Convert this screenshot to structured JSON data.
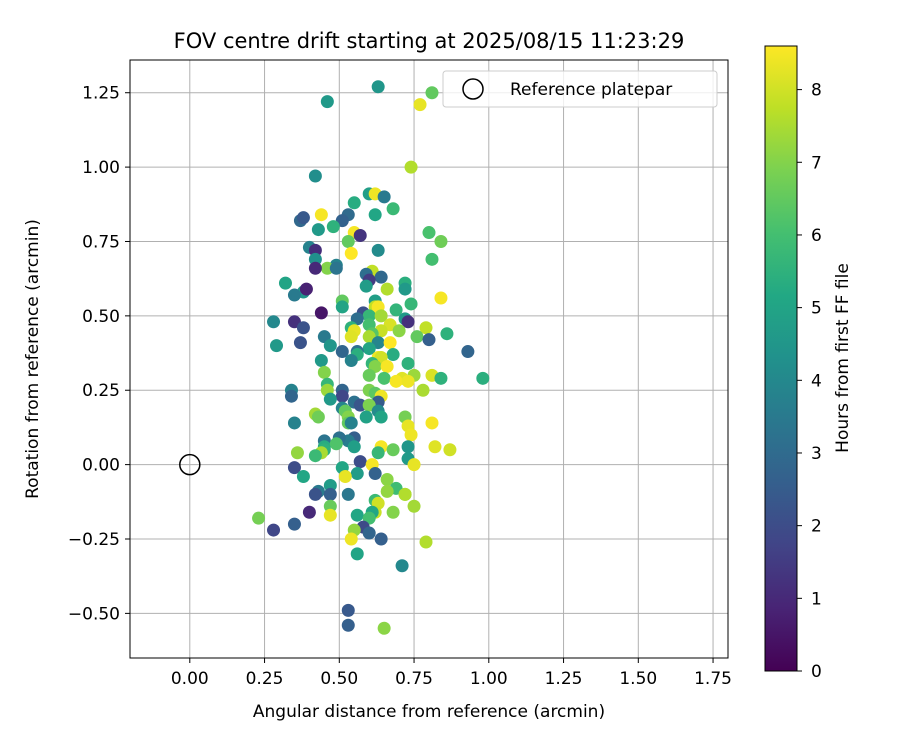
{
  "chart_data": {
    "type": "scatter",
    "title": "FOV centre drift starting at 2025/08/15 11:23:29",
    "xlabel": "Angular distance from reference (arcmin)",
    "ylabel": "Rotation from reference (arcmin)",
    "xlim": [
      -0.2,
      1.8
    ],
    "ylim": [
      -0.65,
      1.36
    ],
    "xticks": [
      "0.00",
      "0.25",
      "0.50",
      "0.75",
      "1.00",
      "1.25",
      "1.50",
      "1.75"
    ],
    "yticks": [
      "−0.50",
      "−0.25",
      "0.00",
      "0.25",
      "0.50",
      "0.75",
      "1.00",
      "1.25"
    ],
    "grid": true,
    "legend": {
      "placement": "top-right",
      "entries": [
        "Reference platepar"
      ]
    },
    "reference_point": {
      "x": 0.0,
      "y": 0.0
    },
    "colorbar": {
      "label": "Hours from first FF file",
      "range": [
        0,
        8.6
      ],
      "ticks": [
        "0",
        "1",
        "2",
        "3",
        "4",
        "5",
        "6",
        "7",
        "8"
      ],
      "colormap": "viridis"
    },
    "points": [
      [
        0.63,
        1.27,
        4.5
      ],
      [
        0.81,
        1.25,
        6.5
      ],
      [
        0.77,
        1.21,
        8.3
      ],
      [
        0.46,
        1.22,
        4.6
      ],
      [
        0.74,
        1.0,
        7.6
      ],
      [
        0.42,
        0.97,
        4.2
      ],
      [
        0.6,
        0.91,
        4.8
      ],
      [
        0.62,
        0.91,
        8.4
      ],
      [
        0.65,
        0.9,
        3.5
      ],
      [
        0.55,
        0.88,
        5.3
      ],
      [
        0.68,
        0.86,
        5.8
      ],
      [
        0.53,
        0.84,
        3.0
      ],
      [
        0.44,
        0.84,
        8.5
      ],
      [
        0.62,
        0.84,
        5.1
      ],
      [
        0.37,
        0.82,
        2.9
      ],
      [
        0.38,
        0.83,
        2.4
      ],
      [
        0.51,
        0.82,
        2.7
      ],
      [
        0.48,
        0.8,
        5.5
      ],
      [
        0.43,
        0.79,
        4.6
      ],
      [
        0.8,
        0.78,
        6.1
      ],
      [
        0.55,
        0.78,
        8.5
      ],
      [
        0.57,
        0.77,
        1.3
      ],
      [
        0.53,
        0.75,
        6.5
      ],
      [
        0.84,
        0.75,
        6.7
      ],
      [
        0.4,
        0.73,
        3.8
      ],
      [
        0.42,
        0.72,
        1.1
      ],
      [
        0.63,
        0.72,
        4.1
      ],
      [
        0.54,
        0.71,
        8.6
      ],
      [
        0.42,
        0.69,
        4.3
      ],
      [
        0.81,
        0.69,
        6.0
      ],
      [
        0.49,
        0.67,
        3.8
      ],
      [
        0.46,
        0.66,
        7.0
      ],
      [
        0.49,
        0.66,
        3.3
      ],
      [
        0.42,
        0.66,
        1.0
      ],
      [
        0.61,
        0.65,
        7.8
      ],
      [
        0.59,
        0.64,
        3.1
      ],
      [
        0.64,
        0.63,
        2.9
      ],
      [
        0.72,
        0.61,
        5.4
      ],
      [
        0.6,
        0.62,
        1.5
      ],
      [
        0.32,
        0.61,
        5.0
      ],
      [
        0.59,
        0.6,
        4.7
      ],
      [
        0.66,
        0.59,
        7.6
      ],
      [
        0.72,
        0.59,
        4.6
      ],
      [
        0.38,
        0.58,
        4.5
      ],
      [
        0.39,
        0.59,
        0.8
      ],
      [
        0.35,
        0.57,
        3.5
      ],
      [
        0.62,
        0.55,
        4.8
      ],
      [
        0.51,
        0.55,
        6.5
      ],
      [
        0.74,
        0.54,
        5.7
      ],
      [
        0.84,
        0.56,
        8.5
      ],
      [
        0.62,
        0.53,
        7.8
      ],
      [
        0.63,
        0.53,
        8.5
      ],
      [
        0.51,
        0.53,
        5.0
      ],
      [
        0.69,
        0.52,
        5.6
      ],
      [
        0.44,
        0.51,
        0.5
      ],
      [
        0.58,
        0.51,
        2.1
      ],
      [
        0.6,
        0.5,
        5.7
      ],
      [
        0.64,
        0.5,
        7.4
      ],
      [
        0.72,
        0.49,
        4.6
      ],
      [
        0.56,
        0.49,
        3.1
      ],
      [
        0.28,
        0.48,
        4.0
      ],
      [
        0.35,
        0.48,
        1.2
      ],
      [
        0.73,
        0.48,
        1.2
      ],
      [
        0.6,
        0.47,
        6.0
      ],
      [
        0.67,
        0.47,
        8.1
      ],
      [
        0.38,
        0.46,
        2.2
      ],
      [
        0.54,
        0.46,
        5.5
      ],
      [
        0.79,
        0.46,
        7.8
      ],
      [
        0.55,
        0.45,
        8.3
      ],
      [
        0.64,
        0.45,
        7.9
      ],
      [
        0.7,
        0.45,
        7.1
      ],
      [
        0.61,
        0.44,
        6.3
      ],
      [
        0.86,
        0.44,
        5.5
      ],
      [
        0.6,
        0.43,
        7.5
      ],
      [
        0.54,
        0.43,
        8.2
      ],
      [
        0.45,
        0.43,
        3.5
      ],
      [
        0.76,
        0.43,
        6.5
      ],
      [
        0.8,
        0.42,
        2.6
      ],
      [
        0.63,
        0.41,
        3.9
      ],
      [
        0.67,
        0.41,
        8.6
      ],
      [
        0.47,
        0.4,
        4.5
      ],
      [
        0.37,
        0.41,
        2.2
      ],
      [
        0.29,
        0.4,
        4.6
      ],
      [
        0.6,
        0.39,
        5.0
      ],
      [
        0.56,
        0.38,
        3.2
      ],
      [
        0.51,
        0.38,
        2.8
      ],
      [
        0.93,
        0.38,
        2.8
      ],
      [
        0.56,
        0.37,
        5.4
      ],
      [
        0.68,
        0.37,
        5.3
      ],
      [
        0.63,
        0.36,
        8.4
      ],
      [
        0.64,
        0.36,
        8.0
      ],
      [
        0.44,
        0.35,
        4.6
      ],
      [
        0.54,
        0.35,
        3.8
      ],
      [
        0.61,
        0.34,
        5.6
      ],
      [
        0.73,
        0.34,
        5.5
      ],
      [
        0.62,
        0.33,
        7.0
      ],
      [
        0.66,
        0.33,
        8.5
      ],
      [
        0.45,
        0.31,
        7.0
      ],
      [
        0.75,
        0.3,
        7.3
      ],
      [
        0.81,
        0.3,
        8.1
      ],
      [
        0.6,
        0.3,
        6.6
      ],
      [
        0.98,
        0.29,
        5.4
      ],
      [
        0.65,
        0.29,
        6.1
      ],
      [
        0.84,
        0.29,
        5.5
      ],
      [
        0.71,
        0.29,
        8.2
      ],
      [
        0.69,
        0.28,
        8.5
      ],
      [
        0.73,
        0.28,
        8.4
      ],
      [
        0.46,
        0.27,
        5.7
      ],
      [
        0.46,
        0.25,
        7.3
      ],
      [
        0.6,
        0.25,
        6.9
      ],
      [
        0.34,
        0.25,
        3.8
      ],
      [
        0.51,
        0.25,
        2.8
      ],
      [
        0.78,
        0.25,
        7.5
      ],
      [
        0.62,
        0.24,
        6.4
      ],
      [
        0.64,
        0.23,
        8.4
      ],
      [
        0.34,
        0.23,
        2.8
      ],
      [
        0.51,
        0.23,
        1.8
      ],
      [
        0.47,
        0.22,
        4.6
      ],
      [
        0.63,
        0.21,
        2.5
      ],
      [
        0.55,
        0.21,
        3.2
      ],
      [
        0.57,
        0.2,
        2.3
      ],
      [
        0.6,
        0.2,
        6.9
      ],
      [
        0.51,
        0.19,
        3.9
      ],
      [
        0.63,
        0.18,
        4.1
      ],
      [
        0.52,
        0.18,
        6.5
      ],
      [
        0.42,
        0.17,
        7.4
      ],
      [
        0.53,
        0.16,
        7.0
      ],
      [
        0.59,
        0.16,
        4.9
      ],
      [
        0.43,
        0.16,
        6.7
      ],
      [
        0.64,
        0.16,
        5.0
      ],
      [
        0.72,
        0.16,
        6.8
      ],
      [
        0.35,
        0.14,
        3.8
      ],
      [
        0.53,
        0.14,
        6.5
      ],
      [
        0.81,
        0.14,
        8.5
      ],
      [
        0.54,
        0.14,
        3.8
      ],
      [
        0.73,
        0.13,
        8.3
      ],
      [
        0.74,
        0.1,
        8.4
      ],
      [
        0.55,
        0.09,
        2.6
      ],
      [
        0.45,
        0.08,
        3.3
      ],
      [
        0.53,
        0.08,
        3.6
      ],
      [
        0.5,
        0.09,
        3.2
      ],
      [
        0.45,
        0.06,
        5.3
      ],
      [
        0.49,
        0.07,
        6.2
      ],
      [
        0.55,
        0.06,
        4.8
      ],
      [
        0.64,
        0.06,
        8.5
      ],
      [
        0.73,
        0.06,
        4.5
      ],
      [
        0.82,
        0.06,
        8.2
      ],
      [
        0.87,
        0.05,
        8.0
      ],
      [
        0.68,
        0.05,
        6.6
      ],
      [
        0.45,
        0.05,
        5.5
      ],
      [
        0.44,
        0.04,
        7.5
      ],
      [
        0.63,
        0.04,
        5.7
      ],
      [
        0.36,
        0.04,
        7.2
      ],
      [
        0.42,
        0.03,
        5.8
      ],
      [
        0.73,
        0.02,
        4.6
      ],
      [
        0.57,
        0.01,
        2.0
      ],
      [
        0.35,
        -0.01,
        2.0
      ],
      [
        0.61,
        0.0,
        8.5
      ],
      [
        0.75,
        0.0,
        8.3
      ],
      [
        0.51,
        -0.01,
        5.1
      ],
      [
        0.62,
        -0.03,
        2.7
      ],
      [
        0.56,
        -0.03,
        4.7
      ],
      [
        0.38,
        -0.04,
        5.1
      ],
      [
        0.52,
        -0.04,
        8.3
      ],
      [
        0.66,
        -0.05,
        7.1
      ],
      [
        0.47,
        -0.07,
        4.7
      ],
      [
        0.69,
        -0.08,
        5.9
      ],
      [
        0.43,
        -0.09,
        3.5
      ],
      [
        0.66,
        -0.09,
        7.2
      ],
      [
        0.72,
        -0.1,
        6.8
      ],
      [
        0.42,
        -0.1,
        2.2
      ],
      [
        0.47,
        -0.1,
        2.6
      ],
      [
        0.53,
        -0.1,
        3.4
      ],
      [
        0.72,
        -0.1,
        7.6
      ],
      [
        0.62,
        -0.12,
        5.8
      ],
      [
        0.63,
        -0.13,
        8.0
      ],
      [
        0.47,
        -0.14,
        6.6
      ],
      [
        0.75,
        -0.14,
        7.4
      ],
      [
        0.68,
        -0.16,
        7.0
      ],
      [
        0.62,
        -0.16,
        7.9
      ],
      [
        0.4,
        -0.16,
        1.0
      ],
      [
        0.61,
        -0.16,
        5.1
      ],
      [
        0.56,
        -0.17,
        5.1
      ],
      [
        0.47,
        -0.17,
        8.3
      ],
      [
        0.23,
        -0.18,
        6.8
      ],
      [
        0.6,
        -0.18,
        6.0
      ],
      [
        0.35,
        -0.2,
        2.6
      ],
      [
        0.58,
        -0.21,
        1.9
      ],
      [
        0.55,
        -0.22,
        7.2
      ],
      [
        0.28,
        -0.22,
        1.8
      ],
      [
        0.6,
        -0.23,
        2.8
      ],
      [
        0.64,
        -0.25,
        2.6
      ],
      [
        0.54,
        -0.25,
        8.4
      ],
      [
        0.79,
        -0.26,
        7.6
      ],
      [
        0.56,
        -0.3,
        5.0
      ],
      [
        0.71,
        -0.34,
        4.0
      ],
      [
        0.53,
        -0.49,
        2.4
      ],
      [
        0.53,
        -0.54,
        2.6
      ],
      [
        0.65,
        -0.55,
        7.1
      ]
    ]
  }
}
